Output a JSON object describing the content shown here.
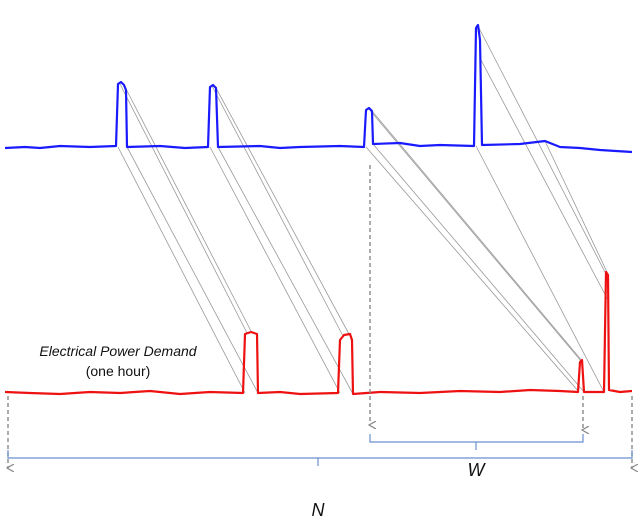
{
  "annotation": {
    "title": "Electrical Power Demand",
    "subtitle": "(one hour)"
  },
  "brace_labels": {
    "window": "W",
    "length": "N"
  }
}
